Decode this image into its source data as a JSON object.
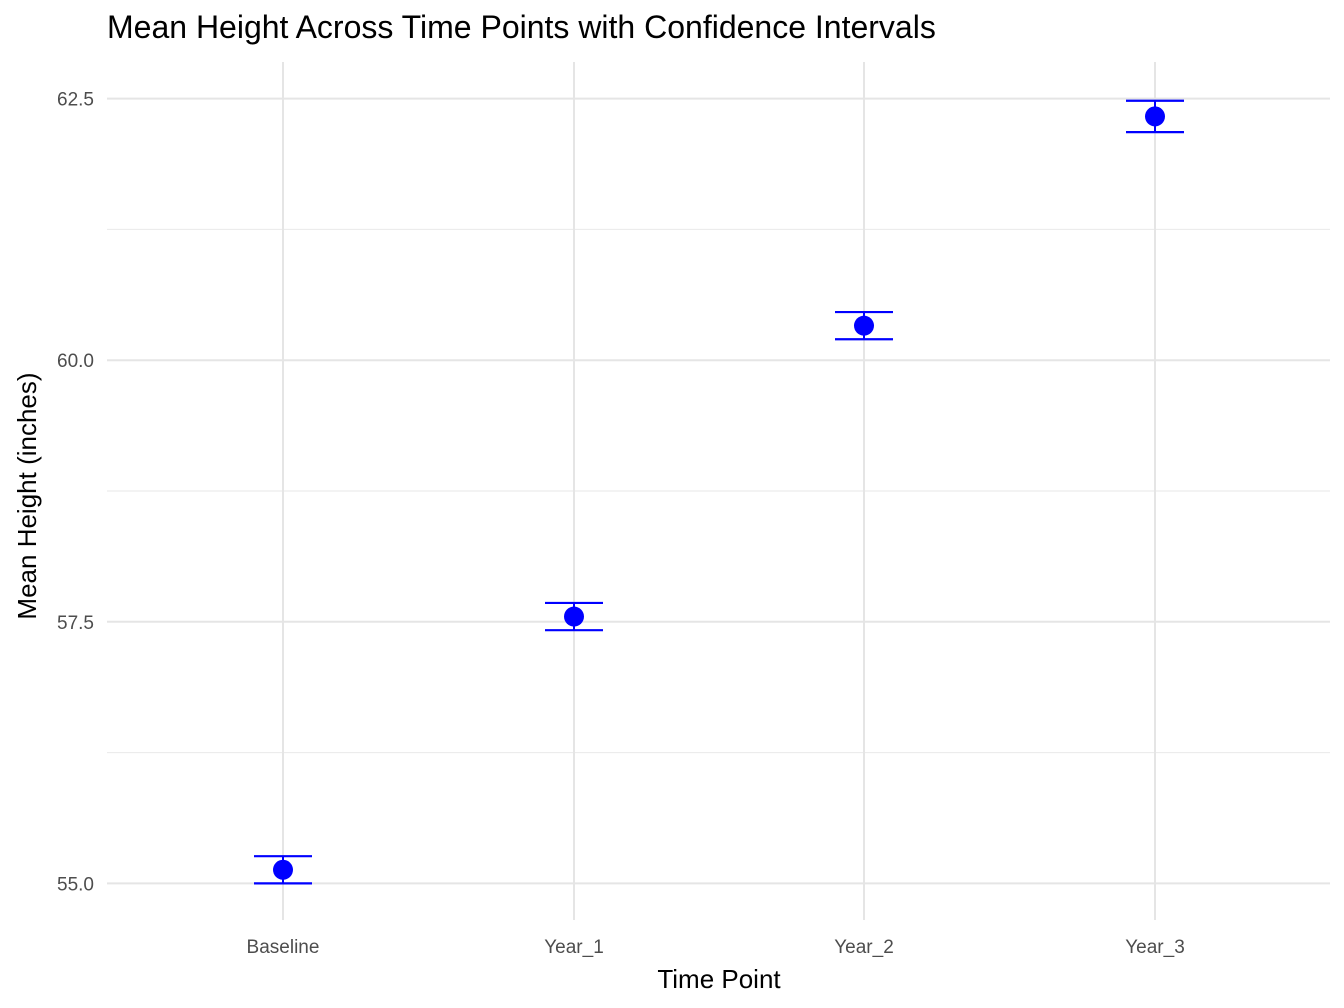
{
  "chart_data": {
    "type": "scatter",
    "title": "Mean Height Across Time Points with Confidence Intervals",
    "xlabel": "Time Point",
    "ylabel": "Mean Height (inches)",
    "categories": [
      "Baseline",
      "Year_1",
      "Year_2",
      "Year_3"
    ],
    "series": [
      {
        "values": [
          55.13,
          57.55,
          60.33,
          62.33
        ],
        "ci_lower": [
          55.0,
          57.42,
          60.2,
          62.18
        ],
        "ci_upper": [
          55.26,
          57.68,
          60.46,
          62.48
        ]
      }
    ],
    "ylim": [
      54.65,
      62.85
    ],
    "yticks": [
      55.0,
      57.5,
      60.0,
      62.5
    ],
    "ytick_labels": [
      "55.0",
      "57.5",
      "60.0",
      "62.5"
    ],
    "grid": true,
    "color": "#0000ff"
  }
}
